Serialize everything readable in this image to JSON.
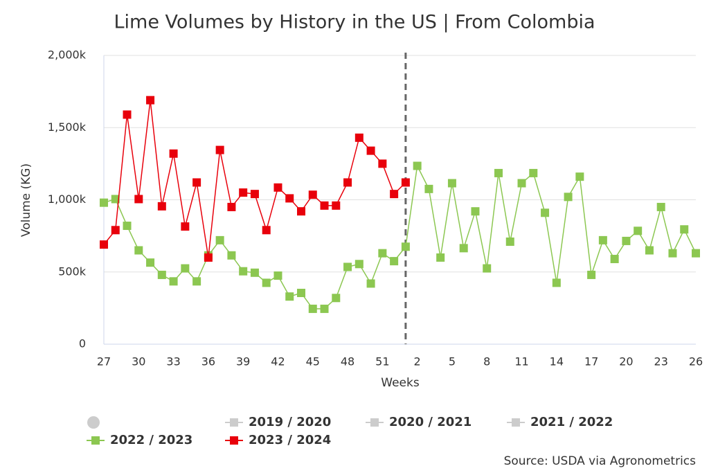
{
  "chart_data": {
    "type": "line",
    "title": "Lime Volumes by History in the US | From Colombia",
    "x_label": "Weeks",
    "y_label": "Volume (KG)",
    "source": "Source: USDA via Agronometrics",
    "categories": [
      "27",
      null,
      null,
      "30",
      null,
      null,
      "33",
      null,
      null,
      "36",
      null,
      null,
      "39",
      null,
      null,
      "42",
      null,
      null,
      "45",
      null,
      null,
      "48",
      null,
      null,
      "51",
      null,
      null,
      "2",
      null,
      null,
      "5",
      null,
      null,
      "8",
      null,
      null,
      "11",
      null,
      null,
      "14",
      null,
      null,
      "17",
      null,
      null,
      "20",
      null,
      null,
      "23",
      null,
      null,
      "26"
    ],
    "ylim": [
      0,
      2000000
    ],
    "yticks": [
      0,
      {
        "value": 500000,
        "label": "500k"
      },
      {
        "value": 1000000,
        "label": "1,000k"
      },
      {
        "value": 1500000,
        "label": "1,500k"
      },
      {
        "value": 2000000,
        "label": "2,000k"
      }
    ],
    "grid": true,
    "plot_line": {
      "x": 26,
      "color": "#666666",
      "style": "dash"
    },
    "series": [
      {
        "name": "2019 / 2020",
        "color": "#cccccc",
        "visible": false,
        "values": [
          null,
          null,
          null,
          null,
          null,
          null,
          null,
          null,
          null,
          null,
          null,
          null,
          null,
          null,
          null,
          null,
          null,
          null,
          null,
          null,
          null,
          null,
          null,
          null,
          null,
          null,
          null,
          null,
          null,
          null,
          null,
          null,
          null,
          null,
          null,
          null,
          null,
          null,
          null,
          null,
          null,
          null,
          null,
          null,
          null,
          null,
          null,
          null,
          null,
          null,
          null,
          null
        ]
      },
      {
        "name": "2020 / 2021",
        "color": "#cccccc",
        "visible": false,
        "values": [
          null,
          null,
          null,
          null,
          null,
          null,
          null,
          null,
          null,
          null,
          null,
          null,
          null,
          null,
          null,
          null,
          null,
          null,
          null,
          null,
          null,
          null,
          null,
          null,
          null,
          null,
          null,
          null,
          null,
          null,
          null,
          null,
          null,
          null,
          null,
          null,
          null,
          null,
          null,
          null,
          null,
          null,
          null,
          null,
          null,
          null,
          null,
          null,
          null,
          null,
          null,
          null
        ]
      },
      {
        "name": "2021 / 2022",
        "color": "#cccccc",
        "visible": false,
        "values": [
          null,
          null,
          null,
          null,
          null,
          null,
          null,
          null,
          null,
          null,
          null,
          null,
          null,
          null,
          null,
          null,
          null,
          null,
          null,
          null,
          null,
          null,
          null,
          null,
          null,
          null,
          null,
          null,
          null,
          null,
          null,
          null,
          null,
          null,
          null,
          null,
          null,
          null,
          null,
          null,
          null,
          null,
          null,
          null,
          null,
          null,
          null,
          null,
          null,
          null,
          null,
          null
        ]
      },
      {
        "name": "2022 / 2023",
        "color": "#8cc751",
        "visible": true,
        "values": [
          980000,
          1005000,
          820000,
          650000,
          565000,
          480000,
          435000,
          525000,
          435000,
          615000,
          720000,
          615000,
          505000,
          495000,
          425000,
          475000,
          330000,
          355000,
          245000,
          245000,
          320000,
          535000,
          555000,
          420000,
          630000,
          575000,
          675000,
          1235000,
          1075000,
          600000,
          1115000,
          665000,
          920000,
          525000,
          1185000,
          710000,
          1115000,
          1185000,
          910000,
          425000,
          1020000,
          1160000,
          480000,
          720000,
          590000,
          715000,
          785000,
          650000,
          950000,
          630000,
          795000,
          630000
        ]
      },
      {
        "name": "2023 / 2024",
        "color": "#e8000b",
        "visible": true,
        "values": [
          690000,
          790000,
          1590000,
          1005000,
          1690000,
          955000,
          1320000,
          815000,
          1120000,
          600000,
          1345000,
          950000,
          1050000,
          1040000,
          790000,
          1085000,
          1010000,
          920000,
          1035000,
          960000,
          960000,
          1120000,
          1430000,
          1340000,
          1250000,
          1040000,
          1120000,
          null,
          null,
          null,
          null,
          null,
          null,
          null,
          null,
          null,
          null,
          null,
          null,
          null,
          null,
          null,
          null,
          null,
          null,
          null,
          null,
          null,
          null,
          null,
          null,
          null
        ]
      }
    ]
  }
}
